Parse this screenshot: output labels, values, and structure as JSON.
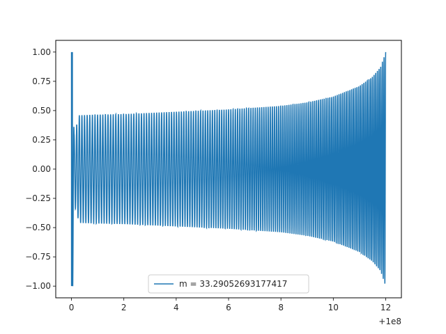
{
  "chart_data": {
    "type": "line",
    "title": "",
    "xlabel": "",
    "ylabel": "",
    "x_offset_label": "+1e8",
    "xlim": [
      -0.6,
      12.6
    ],
    "ylim": [
      -1.1,
      1.1
    ],
    "x_ticks": [
      0,
      2,
      4,
      6,
      8,
      10,
      12
    ],
    "x_tick_labels": [
      "0",
      "2",
      "4",
      "6",
      "8",
      "10",
      "12"
    ],
    "y_ticks": [
      -1.0,
      -0.75,
      -0.5,
      -0.25,
      0.0,
      0.25,
      0.5,
      0.75,
      1.0
    ],
    "y_tick_labels": [
      "−1.00",
      "−0.75",
      "−0.50",
      "−0.25",
      "0.00",
      "0.25",
      "0.50",
      "0.75",
      "1.00"
    ],
    "grid": false,
    "legend_position": "bottom-center",
    "series": [
      {
        "name": "m = 33.29052693177417",
        "color": "#1f77b4",
        "description_points": {
          "x": [
            0,
            0.05,
            0.1,
            0.3,
            1,
            2,
            4,
            6,
            8,
            9,
            10,
            11,
            11.5,
            11.8,
            12
          ],
          "envelope": [
            1.0,
            1.0,
            0.3,
            0.46,
            0.465,
            0.47,
            0.49,
            0.51,
            0.54,
            0.57,
            0.62,
            0.71,
            0.79,
            0.87,
            1.0
          ]
        }
      }
    ]
  }
}
